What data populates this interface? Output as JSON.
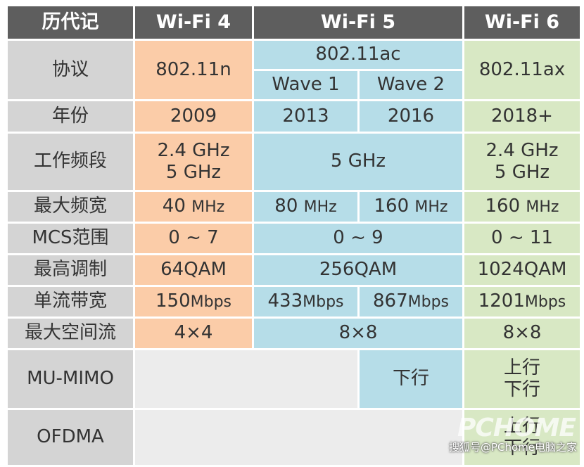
{
  "header": {
    "col0": "历代记",
    "col1": "Wi-Fi 4",
    "col2": "Wi-Fi 5",
    "col3": "Wi-Fi 6"
  },
  "rows": {
    "protocol": {
      "label": "协议",
      "wifi4": "802.11n",
      "wifi5": "802.11ac",
      "wave1": "Wave 1",
      "wave2": "Wave 2",
      "wifi6": "802.11ax"
    },
    "year": {
      "label": "年份",
      "wifi4": "2009",
      "wave1": "2013",
      "wave2": "2016",
      "wifi6": "2018+"
    },
    "band": {
      "label": "工作频段",
      "wifi4_a": "2.4 GHz",
      "wifi4_b": "5 GHz",
      "wifi5": "5 GHz",
      "wifi6_a": "2.4 GHz",
      "wifi6_b": "5 GHz"
    },
    "bandwidth": {
      "label": "最大频宽",
      "wifi4": "40",
      "wave1": "80",
      "wave2": "160",
      "wifi6": "160",
      "unit": "MHz"
    },
    "mcs": {
      "label": "MCS范围",
      "wifi4": "0 ~ 7",
      "wifi5": "0 ~ 9",
      "wifi6": "0 ~ 11"
    },
    "modulation": {
      "label": "最高调制",
      "wifi4": "64QAM",
      "wifi5": "256QAM",
      "wifi6": "1024QAM"
    },
    "stream_rate": {
      "label": "单流带宽",
      "wifi4": "150",
      "wave1": "433",
      "wave2": "867",
      "wifi6": "1201",
      "unit": "Mbps"
    },
    "spatial": {
      "label": "最大空间流",
      "wifi4": "4×4",
      "wifi5": "8×8",
      "wifi6": "8×8"
    },
    "mumimo": {
      "label": "MU-MIMO",
      "wave2": "下行",
      "wifi6_a": "上行",
      "wifi6_b": "下行"
    },
    "ofdma": {
      "label": "OFDMA",
      "wifi6_a": "上行",
      "wifi6_b": "下行"
    }
  },
  "watermark": {
    "logo": "PCHOME",
    "text": "搜狐号@PChome电脑之家"
  },
  "colors": {
    "header_bg": "#5e5e5e",
    "label_bg": "#d4d4d4",
    "wifi4_bg": "#fbcca8",
    "wifi5_bg": "#b6dde8",
    "wifi6_bg": "#d8e8c4"
  }
}
